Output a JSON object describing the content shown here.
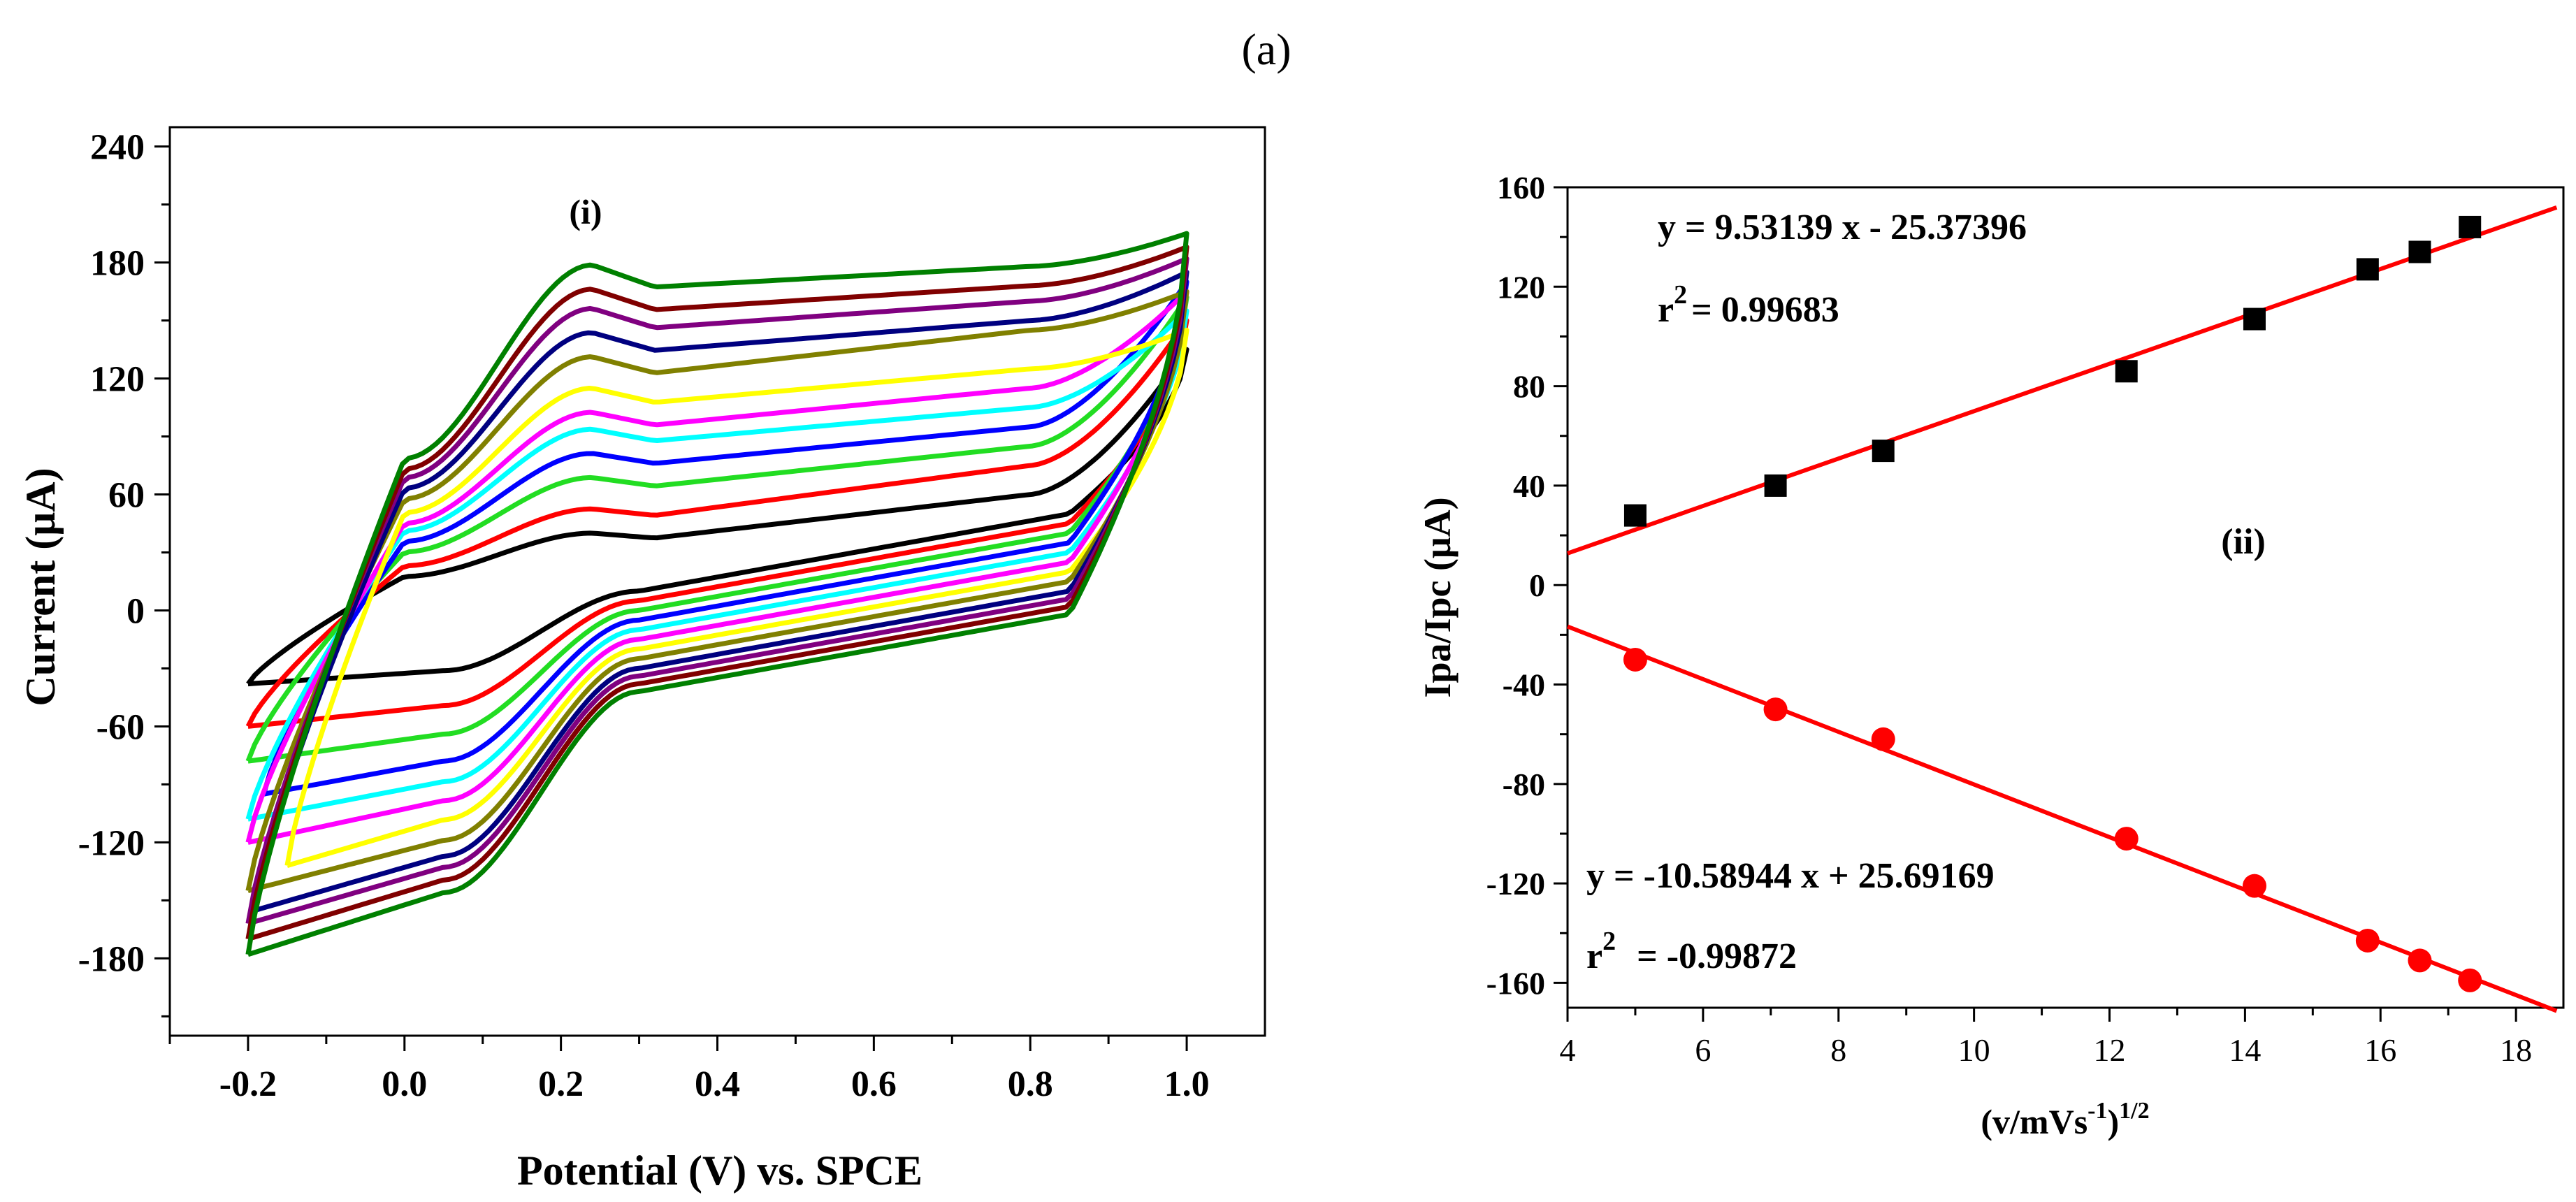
{
  "figure_label": "(a)",
  "chart_data": [
    {
      "type": "line",
      "panel_label": "(i)",
      "xlabel": "Potential (V) vs. SPCE",
      "ylabel": "Current (μA)",
      "xlim": [
        -0.3,
        1.1
      ],
      "ylim": [
        -220,
        250
      ],
      "xticks": [
        -0.2,
        0.0,
        0.2,
        0.4,
        0.6,
        0.8,
        1.0
      ],
      "xtick_labels": [
        "-0.2",
        "0.0",
        "0.2",
        "0.4",
        "0.6",
        "0.8",
        "1.0"
      ],
      "yticks": [
        -180,
        -120,
        -60,
        0,
        60,
        120,
        180,
        240
      ],
      "ytick_labels": [
        "-180",
        "-120",
        "-60",
        "0",
        "60",
        "120",
        "180",
        "240"
      ],
      "grid": false,
      "legend": "none",
      "series": [
        {
          "color": "#000000",
          "x_start": -0.2,
          "x_end": 1.0,
          "start": -38,
          "anodic_peak": 32,
          "anodic_plateau": 60,
          "vertex": 135,
          "cathodic_plateau": 10,
          "cathodic_end": -38
        },
        {
          "color": "#ff0000",
          "x_start": -0.2,
          "x_end": 1.0,
          "start": -60,
          "anodic_peak": 42,
          "anodic_plateau": 75,
          "vertex": 150,
          "cathodic_plateau": 5,
          "cathodic_end": -60
        },
        {
          "color": "#22dd22",
          "x_start": -0.2,
          "x_end": 1.0,
          "start": -78,
          "anodic_peak": 55,
          "anodic_plateau": 85,
          "vertex": 162,
          "cathodic_plateau": 0,
          "cathodic_end": -78
        },
        {
          "color": "#0000ff",
          "x_start": -0.18,
          "x_end": 1.0,
          "start": -95,
          "anodic_peak": 65,
          "anodic_plateau": 95,
          "vertex": 170,
          "cathodic_plateau": -5,
          "cathodic_end": -95
        },
        {
          "color": "#00ffff",
          "x_start": -0.2,
          "x_end": 1.0,
          "start": -108,
          "anodic_peak": 75,
          "anodic_plateau": 105,
          "vertex": 155,
          "cathodic_plateau": -10,
          "cathodic_end": -108
        },
        {
          "color": "#ff00ff",
          "x_start": -0.2,
          "x_end": 1.0,
          "start": -120,
          "anodic_peak": 82,
          "anodic_plateau": 115,
          "vertex": 165,
          "cathodic_plateau": -15,
          "cathodic_end": -120
        },
        {
          "color": "#ffff00",
          "x_start": -0.15,
          "x_end": 1.0,
          "start": -132,
          "anodic_peak": 92,
          "anodic_plateau": 125,
          "vertex": 145,
          "cathodic_plateau": -20,
          "cathodic_end": -132
        },
        {
          "color": "#808000",
          "x_start": -0.2,
          "x_end": 1.0,
          "start": -145,
          "anodic_peak": 105,
          "anodic_plateau": 145,
          "vertex": 165,
          "cathodic_plateau": -25,
          "cathodic_end": -145
        },
        {
          "color": "#000080",
          "x_start": -0.19,
          "x_end": 1.0,
          "start": -155,
          "anodic_peak": 115,
          "anodic_plateau": 150,
          "vertex": 175,
          "cathodic_plateau": -30,
          "cathodic_end": -155
        },
        {
          "color": "#800080",
          "x_start": -0.2,
          "x_end": 1.0,
          "start": -162,
          "anodic_peak": 125,
          "anodic_plateau": 160,
          "vertex": 182,
          "cathodic_plateau": -34,
          "cathodic_end": -162
        },
        {
          "color": "#800000",
          "x_start": -0.2,
          "x_end": 1.0,
          "start": -170,
          "anodic_peak": 133,
          "anodic_plateau": 168,
          "vertex": 188,
          "cathodic_plateau": -38,
          "cathodic_end": -170
        },
        {
          "color": "#008000",
          "x_start": -0.2,
          "x_end": 1.0,
          "start": -178,
          "anodic_peak": 143,
          "anodic_plateau": 178,
          "vertex": 195,
          "cathodic_plateau": -42,
          "cathodic_end": -178
        }
      ]
    },
    {
      "type": "scatter",
      "panel_label": "(ii)",
      "xlabel_base": "(v/mVs",
      "xlabel_sup1": "-1",
      "xlabel_mid": ")",
      "xlabel_sup2": "1/2",
      "ylabel": "Ipa/Ipc (μA)",
      "xlim": [
        4,
        18.7
      ],
      "ylim": [
        -170,
        160
      ],
      "xticks": [
        4,
        6,
        8,
        10,
        12,
        14,
        16,
        18
      ],
      "xtick_labels": [
        "4",
        "6",
        "8",
        "10",
        "12",
        "14",
        "16",
        "18"
      ],
      "yticks": [
        -160,
        -120,
        -80,
        -40,
        0,
        40,
        80,
        120,
        160
      ],
      "ytick_labels": [
        "-160",
        "-120",
        "-80",
        "-40",
        "0",
        "40",
        "80",
        "120",
        "160"
      ],
      "grid": false,
      "legend": "none",
      "series": [
        {
          "marker": "square",
          "color": "#000000",
          "x": [
            5.0,
            7.07,
            8.66,
            12.25,
            14.14,
            15.81,
            16.58,
            17.32
          ],
          "y": [
            28,
            40,
            54,
            86,
            107,
            127,
            134,
            144
          ],
          "fit": {
            "slope": 9.53139,
            "intercept": -25.37396,
            "color": "#ff0000",
            "x_range": [
              4,
              18.6
            ]
          },
          "eq_main": "y = 9.53139 x - 25.37396",
          "r2_base": "r",
          "r2_sup": "2",
          "r2_value": "= 0.99683"
        },
        {
          "marker": "circle",
          "color": "#ff0000",
          "x": [
            5.0,
            7.07,
            8.66,
            12.25,
            14.14,
            15.81,
            16.58,
            17.32
          ],
          "y": [
            -30,
            -50,
            -62,
            -102,
            -121,
            -143,
            -151,
            -159
          ],
          "fit": {
            "slope": -10.58944,
            "intercept": 25.69169,
            "color": "#ff0000",
            "x_range": [
              4,
              18.6
            ]
          },
          "eq_main": "y = -10.58944 x + 25.69169",
          "r2_base": "r",
          "r2_sup": "2",
          "r2_value": "= -0.99872"
        }
      ]
    }
  ]
}
